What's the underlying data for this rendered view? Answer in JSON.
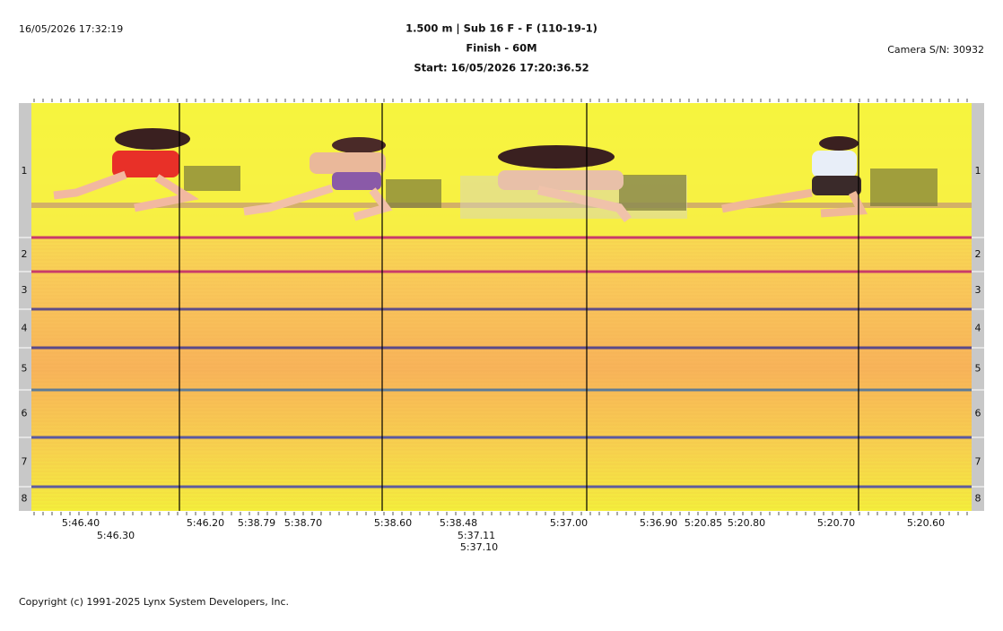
{
  "header": {
    "timestamp": "16/05/2026 17:32:19",
    "event": "1.500 m | Sub 16 F - F (110-19-1)",
    "race": "Finish - 60M",
    "start": "Start: 16/05/2026 17:20:36.52",
    "camera": "Camera S/N: 30932"
  },
  "lanes": [
    "1",
    "2",
    "3",
    "4",
    "5",
    "6",
    "7",
    "8"
  ],
  "time_labels": [
    "5:46.40",
    "5:46.30",
    "5:46.20",
    "5:38.79",
    "5:38.70",
    "5:38.60",
    "5:38.48",
    "5:37.11",
    "5:37.10",
    "5:37.00",
    "5:36.90",
    "5:20.85",
    "5:20.80",
    "5:20.70",
    "5:20.60"
  ],
  "footer": "Copyright (c) 1991-2025 Lynx System Developers, Inc."
}
